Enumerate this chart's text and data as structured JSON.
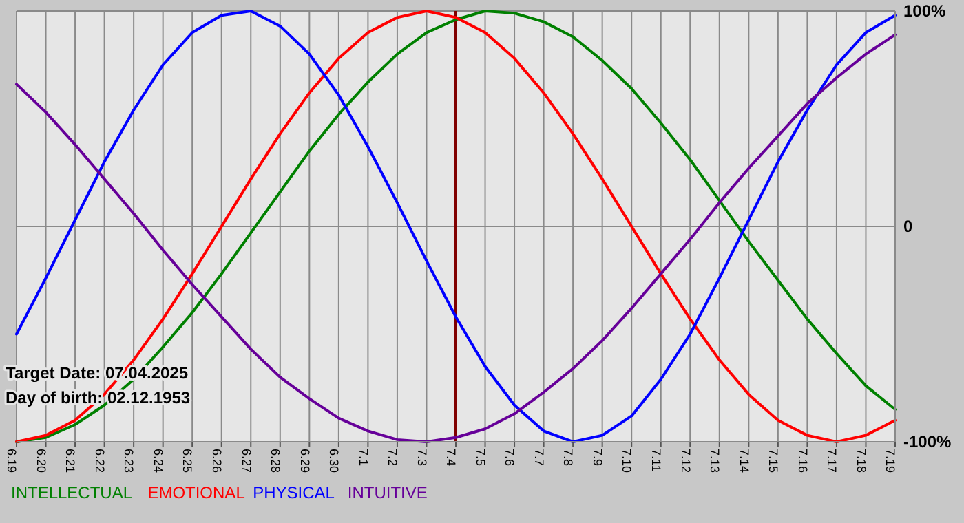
{
  "chart_data": {
    "type": "line",
    "categories": [
      "6.19",
      "6.20",
      "6.21",
      "6.22",
      "6.23",
      "6.24",
      "6.25",
      "6.26",
      "6.27",
      "6.28",
      "6.29",
      "6.30",
      "7.1",
      "7.2",
      "7.3",
      "7.4",
      "7.5",
      "7.6",
      "7.7",
      "7.8",
      "7.9",
      "7.10",
      "7.11",
      "7.12",
      "7.13",
      "7.14",
      "7.15",
      "7.16",
      "7.17",
      "7.18",
      "7.19"
    ],
    "series": [
      {
        "name": "INTELLECTUAL",
        "color": "#008000",
        "values": [
          -100,
          -98,
          -92,
          -83,
          -71,
          -56,
          -40,
          -22,
          -3,
          16,
          35,
          52,
          67,
          80,
          90,
          96,
          100,
          99,
          95,
          88,
          77,
          64,
          48,
          31,
          12,
          -7,
          -25,
          -43,
          -59,
          -74,
          -85
        ]
      },
      {
        "name": "EMOTIONAL",
        "color": "#ff0000",
        "values": [
          -100,
          -97,
          -90,
          -78,
          -62,
          -43,
          -22,
          0,
          22,
          43,
          62,
          78,
          90,
          97,
          100,
          97,
          90,
          78,
          62,
          43,
          22,
          0,
          -22,
          -43,
          -62,
          -78,
          -90,
          -97,
          -100,
          -97,
          -90
        ]
      },
      {
        "name": "PHYSICAL",
        "color": "#0000ff",
        "values": [
          -50,
          -24,
          3,
          30,
          54,
          75,
          90,
          98,
          100,
          93,
          80,
          61,
          37,
          11,
          -16,
          -42,
          -65,
          -83,
          -95,
          -100,
          -97,
          -88,
          -71,
          -50,
          -24,
          3,
          30,
          54,
          75,
          90,
          98
        ]
      },
      {
        "name": "INTUITIVE",
        "color": "#660099",
        "values": [
          66,
          53,
          38,
          22,
          6,
          -11,
          -27,
          -42,
          -57,
          -70,
          -80,
          -89,
          -95,
          -99,
          -100,
          -98,
          -94,
          -87,
          -77,
          -66,
          -53,
          -38,
          -22,
          -6,
          11,
          27,
          42,
          57,
          69,
          80,
          89
        ]
      }
    ],
    "ylim": [
      -100,
      100
    ],
    "yticks": [
      {
        "value": -100,
        "label": "-100%"
      },
      0,
      {
        "value": 100,
        "label": "100%"
      }
    ],
    "grid": true,
    "legend": "bottom",
    "marker": "none",
    "line_style": "solid",
    "ref_lines": [
      {
        "axis": "x",
        "value": "7.4",
        "color": "#800000"
      }
    ],
    "annotations": [
      "Target Date: 07.04.2025",
      "Day of birth: 02.12.1953"
    ]
  }
}
